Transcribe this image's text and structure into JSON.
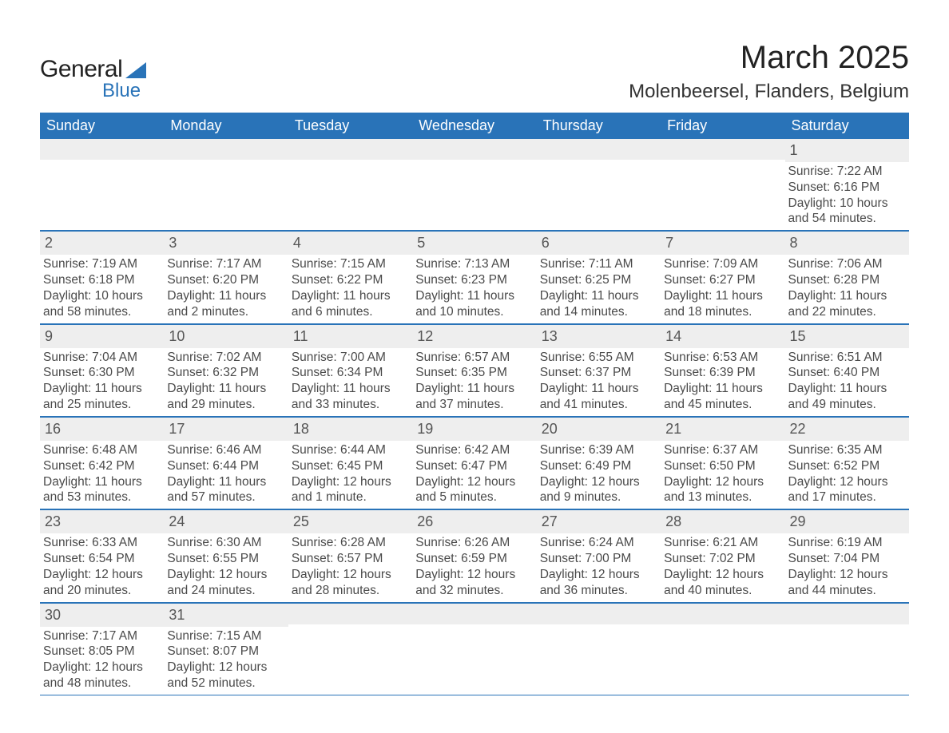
{
  "logo": {
    "text1": "General",
    "text2": "Blue",
    "wedge_color": "#2973b8"
  },
  "header": {
    "month_title": "March 2025",
    "location": "Molenbeersel, Flanders, Belgium"
  },
  "colors": {
    "header_bg": "#2973b8",
    "header_text": "#ffffff",
    "band_bg": "#eeeeee",
    "rule": "#2973b8",
    "body_text": "#4a4a4a"
  },
  "day_headers": [
    "Sunday",
    "Monday",
    "Tuesday",
    "Wednesday",
    "Thursday",
    "Friday",
    "Saturday"
  ],
  "weeks": [
    [
      {
        "n": "",
        "sunrise": "",
        "sunset": "",
        "daylight1": "",
        "daylight2": ""
      },
      {
        "n": "",
        "sunrise": "",
        "sunset": "",
        "daylight1": "",
        "daylight2": ""
      },
      {
        "n": "",
        "sunrise": "",
        "sunset": "",
        "daylight1": "",
        "daylight2": ""
      },
      {
        "n": "",
        "sunrise": "",
        "sunset": "",
        "daylight1": "",
        "daylight2": ""
      },
      {
        "n": "",
        "sunrise": "",
        "sunset": "",
        "daylight1": "",
        "daylight2": ""
      },
      {
        "n": "",
        "sunrise": "",
        "sunset": "",
        "daylight1": "",
        "daylight2": ""
      },
      {
        "n": "1",
        "sunrise": "Sunrise: 7:22 AM",
        "sunset": "Sunset: 6:16 PM",
        "daylight1": "Daylight: 10 hours",
        "daylight2": "and 54 minutes."
      }
    ],
    [
      {
        "n": "2",
        "sunrise": "Sunrise: 7:19 AM",
        "sunset": "Sunset: 6:18 PM",
        "daylight1": "Daylight: 10 hours",
        "daylight2": "and 58 minutes."
      },
      {
        "n": "3",
        "sunrise": "Sunrise: 7:17 AM",
        "sunset": "Sunset: 6:20 PM",
        "daylight1": "Daylight: 11 hours",
        "daylight2": "and 2 minutes."
      },
      {
        "n": "4",
        "sunrise": "Sunrise: 7:15 AM",
        "sunset": "Sunset: 6:22 PM",
        "daylight1": "Daylight: 11 hours",
        "daylight2": "and 6 minutes."
      },
      {
        "n": "5",
        "sunrise": "Sunrise: 7:13 AM",
        "sunset": "Sunset: 6:23 PM",
        "daylight1": "Daylight: 11 hours",
        "daylight2": "and 10 minutes."
      },
      {
        "n": "6",
        "sunrise": "Sunrise: 7:11 AM",
        "sunset": "Sunset: 6:25 PM",
        "daylight1": "Daylight: 11 hours",
        "daylight2": "and 14 minutes."
      },
      {
        "n": "7",
        "sunrise": "Sunrise: 7:09 AM",
        "sunset": "Sunset: 6:27 PM",
        "daylight1": "Daylight: 11 hours",
        "daylight2": "and 18 minutes."
      },
      {
        "n": "8",
        "sunrise": "Sunrise: 7:06 AM",
        "sunset": "Sunset: 6:28 PM",
        "daylight1": "Daylight: 11 hours",
        "daylight2": "and 22 minutes."
      }
    ],
    [
      {
        "n": "9",
        "sunrise": "Sunrise: 7:04 AM",
        "sunset": "Sunset: 6:30 PM",
        "daylight1": "Daylight: 11 hours",
        "daylight2": "and 25 minutes."
      },
      {
        "n": "10",
        "sunrise": "Sunrise: 7:02 AM",
        "sunset": "Sunset: 6:32 PM",
        "daylight1": "Daylight: 11 hours",
        "daylight2": "and 29 minutes."
      },
      {
        "n": "11",
        "sunrise": "Sunrise: 7:00 AM",
        "sunset": "Sunset: 6:34 PM",
        "daylight1": "Daylight: 11 hours",
        "daylight2": "and 33 minutes."
      },
      {
        "n": "12",
        "sunrise": "Sunrise: 6:57 AM",
        "sunset": "Sunset: 6:35 PM",
        "daylight1": "Daylight: 11 hours",
        "daylight2": "and 37 minutes."
      },
      {
        "n": "13",
        "sunrise": "Sunrise: 6:55 AM",
        "sunset": "Sunset: 6:37 PM",
        "daylight1": "Daylight: 11 hours",
        "daylight2": "and 41 minutes."
      },
      {
        "n": "14",
        "sunrise": "Sunrise: 6:53 AM",
        "sunset": "Sunset: 6:39 PM",
        "daylight1": "Daylight: 11 hours",
        "daylight2": "and 45 minutes."
      },
      {
        "n": "15",
        "sunrise": "Sunrise: 6:51 AM",
        "sunset": "Sunset: 6:40 PM",
        "daylight1": "Daylight: 11 hours",
        "daylight2": "and 49 minutes."
      }
    ],
    [
      {
        "n": "16",
        "sunrise": "Sunrise: 6:48 AM",
        "sunset": "Sunset: 6:42 PM",
        "daylight1": "Daylight: 11 hours",
        "daylight2": "and 53 minutes."
      },
      {
        "n": "17",
        "sunrise": "Sunrise: 6:46 AM",
        "sunset": "Sunset: 6:44 PM",
        "daylight1": "Daylight: 11 hours",
        "daylight2": "and 57 minutes."
      },
      {
        "n": "18",
        "sunrise": "Sunrise: 6:44 AM",
        "sunset": "Sunset: 6:45 PM",
        "daylight1": "Daylight: 12 hours",
        "daylight2": "and 1 minute."
      },
      {
        "n": "19",
        "sunrise": "Sunrise: 6:42 AM",
        "sunset": "Sunset: 6:47 PM",
        "daylight1": "Daylight: 12 hours",
        "daylight2": "and 5 minutes."
      },
      {
        "n": "20",
        "sunrise": "Sunrise: 6:39 AM",
        "sunset": "Sunset: 6:49 PM",
        "daylight1": "Daylight: 12 hours",
        "daylight2": "and 9 minutes."
      },
      {
        "n": "21",
        "sunrise": "Sunrise: 6:37 AM",
        "sunset": "Sunset: 6:50 PM",
        "daylight1": "Daylight: 12 hours",
        "daylight2": "and 13 minutes."
      },
      {
        "n": "22",
        "sunrise": "Sunrise: 6:35 AM",
        "sunset": "Sunset: 6:52 PM",
        "daylight1": "Daylight: 12 hours",
        "daylight2": "and 17 minutes."
      }
    ],
    [
      {
        "n": "23",
        "sunrise": "Sunrise: 6:33 AM",
        "sunset": "Sunset: 6:54 PM",
        "daylight1": "Daylight: 12 hours",
        "daylight2": "and 20 minutes."
      },
      {
        "n": "24",
        "sunrise": "Sunrise: 6:30 AM",
        "sunset": "Sunset: 6:55 PM",
        "daylight1": "Daylight: 12 hours",
        "daylight2": "and 24 minutes."
      },
      {
        "n": "25",
        "sunrise": "Sunrise: 6:28 AM",
        "sunset": "Sunset: 6:57 PM",
        "daylight1": "Daylight: 12 hours",
        "daylight2": "and 28 minutes."
      },
      {
        "n": "26",
        "sunrise": "Sunrise: 6:26 AM",
        "sunset": "Sunset: 6:59 PM",
        "daylight1": "Daylight: 12 hours",
        "daylight2": "and 32 minutes."
      },
      {
        "n": "27",
        "sunrise": "Sunrise: 6:24 AM",
        "sunset": "Sunset: 7:00 PM",
        "daylight1": "Daylight: 12 hours",
        "daylight2": "and 36 minutes."
      },
      {
        "n": "28",
        "sunrise": "Sunrise: 6:21 AM",
        "sunset": "Sunset: 7:02 PM",
        "daylight1": "Daylight: 12 hours",
        "daylight2": "and 40 minutes."
      },
      {
        "n": "29",
        "sunrise": "Sunrise: 6:19 AM",
        "sunset": "Sunset: 7:04 PM",
        "daylight1": "Daylight: 12 hours",
        "daylight2": "and 44 minutes."
      }
    ],
    [
      {
        "n": "30",
        "sunrise": "Sunrise: 7:17 AM",
        "sunset": "Sunset: 8:05 PM",
        "daylight1": "Daylight: 12 hours",
        "daylight2": "and 48 minutes."
      },
      {
        "n": "31",
        "sunrise": "Sunrise: 7:15 AM",
        "sunset": "Sunset: 8:07 PM",
        "daylight1": "Daylight: 12 hours",
        "daylight2": "and 52 minutes."
      },
      {
        "n": "",
        "sunrise": "",
        "sunset": "",
        "daylight1": "",
        "daylight2": ""
      },
      {
        "n": "",
        "sunrise": "",
        "sunset": "",
        "daylight1": "",
        "daylight2": ""
      },
      {
        "n": "",
        "sunrise": "",
        "sunset": "",
        "daylight1": "",
        "daylight2": ""
      },
      {
        "n": "",
        "sunrise": "",
        "sunset": "",
        "daylight1": "",
        "daylight2": ""
      },
      {
        "n": "",
        "sunrise": "",
        "sunset": "",
        "daylight1": "",
        "daylight2": ""
      }
    ]
  ]
}
